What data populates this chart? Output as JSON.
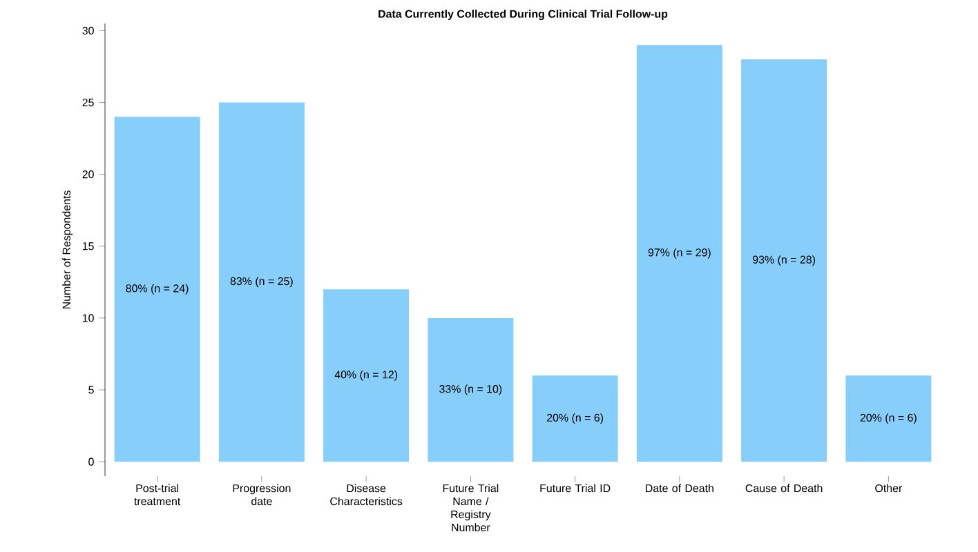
{
  "chart_data": {
    "type": "bar",
    "title": "Data Currently Collected During Clinical Trial Follow-up",
    "ylabel": "Number of Respondents",
    "categories": [
      "Post-trial treatment",
      "Progression date",
      "Disease Characteristics",
      "Future Trial Name / Registry Number",
      "Future Trial ID",
      "Date of Death",
      "Cause of Death",
      "Other"
    ],
    "values": [
      24,
      25,
      12,
      10,
      6,
      29,
      28,
      6
    ],
    "value_labels": [
      "80% (n = 24)",
      "83% (n = 25)",
      "40% (n = 12)",
      "33% (n = 10)",
      "20% (n = 6)",
      "97% (n = 29)",
      "93% (n = 28)",
      "20% (n = 6)"
    ],
    "color": "#87cefa",
    "ylim": [
      -1,
      30.5
    ],
    "yticks": [
      0,
      5,
      10,
      15,
      20,
      25,
      30
    ],
    "grid": false
  }
}
